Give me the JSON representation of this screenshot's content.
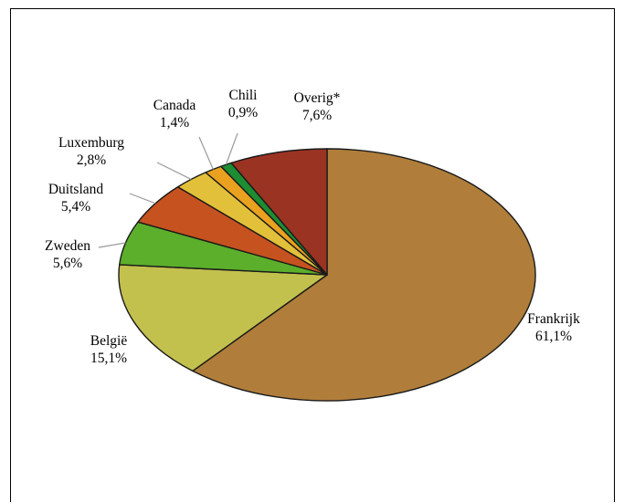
{
  "chart_data": {
    "type": "pie",
    "title": "",
    "slices": [
      {
        "label": "Frankrijk",
        "value_text": "61,1%",
        "value": 61.1,
        "color": "#B07E3A"
      },
      {
        "label": "België",
        "value_text": "15,1%",
        "value": 15.1,
        "color": "#C3C14E"
      },
      {
        "label": "Zweden",
        "value_text": "5,6%",
        "value": 5.6,
        "color": "#5BAF2B"
      },
      {
        "label": "Duitsland",
        "value_text": "5,4%",
        "value": 5.4,
        "color": "#C65220"
      },
      {
        "label": "Luxemburg",
        "value_text": "2,8%",
        "value": 2.8,
        "color": "#E3C03A"
      },
      {
        "label": "Canada",
        "value_text": "1,4%",
        "value": 1.4,
        "color": "#E9A11F"
      },
      {
        "label": "Chili",
        "value_text": "0,9%",
        "value": 0.9,
        "color": "#1E8C33"
      },
      {
        "label": "Overig*",
        "value_text": "7,6%",
        "value": 7.6,
        "color": "#9B3323"
      }
    ],
    "start": "top",
    "direction": "clockwise",
    "legend": "none",
    "labels_outside": true
  }
}
